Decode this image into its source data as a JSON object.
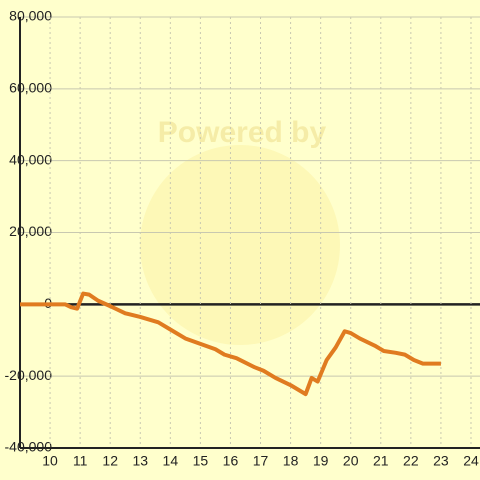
{
  "chart_data": {
    "type": "line",
    "watermark": "Powered by",
    "x": [
      9.0,
      10.5,
      10.7,
      10.9,
      11.1,
      11.3,
      11.6,
      12,
      12.5,
      13,
      13.6,
      14,
      14.5,
      15,
      15.5,
      15.8,
      16.2,
      16.8,
      17.1,
      17.5,
      18,
      18.5,
      18.7,
      18.9,
      19.2,
      19.5,
      19.8,
      20,
      20.3,
      20.8,
      21.1,
      21.5,
      21.8,
      22.1,
      22.4,
      23
    ],
    "series": [
      {
        "color": "#e07b20",
        "values": [
          0,
          0,
          -800,
          -1200,
          3000,
          2700,
          1000,
          -500,
          -2500,
          -3500,
          -5000,
          -7000,
          -9500,
          -11000,
          -12500,
          -14000,
          -15000,
          -17500,
          -18500,
          -20500,
          -22500,
          -25000,
          -20500,
          -21500,
          -15500,
          -12000,
          -7500,
          -8000,
          -9500,
          -11500,
          -13000,
          -13500,
          -14000,
          -15500,
          -16500,
          -16500
        ]
      }
    ],
    "xlim": [
      9,
      24.3
    ],
    "xticks": [
      10,
      11,
      12,
      13,
      14,
      15,
      16,
      17,
      18,
      19,
      20,
      21,
      22,
      23,
      24
    ],
    "ylim": [
      -40000,
      80000
    ],
    "yticks": [
      {
        "value": -40000,
        "label": "-40,000"
      },
      {
        "value": -20000,
        "label": "-20,000"
      },
      0,
      {
        "value": 20000,
        "label": "20,000"
      },
      {
        "value": 40000,
        "label": "40,000"
      },
      {
        "value": 60000,
        "label": "60,000"
      },
      {
        "value": 80000,
        "label": "80,000"
      }
    ],
    "grid": true
  }
}
